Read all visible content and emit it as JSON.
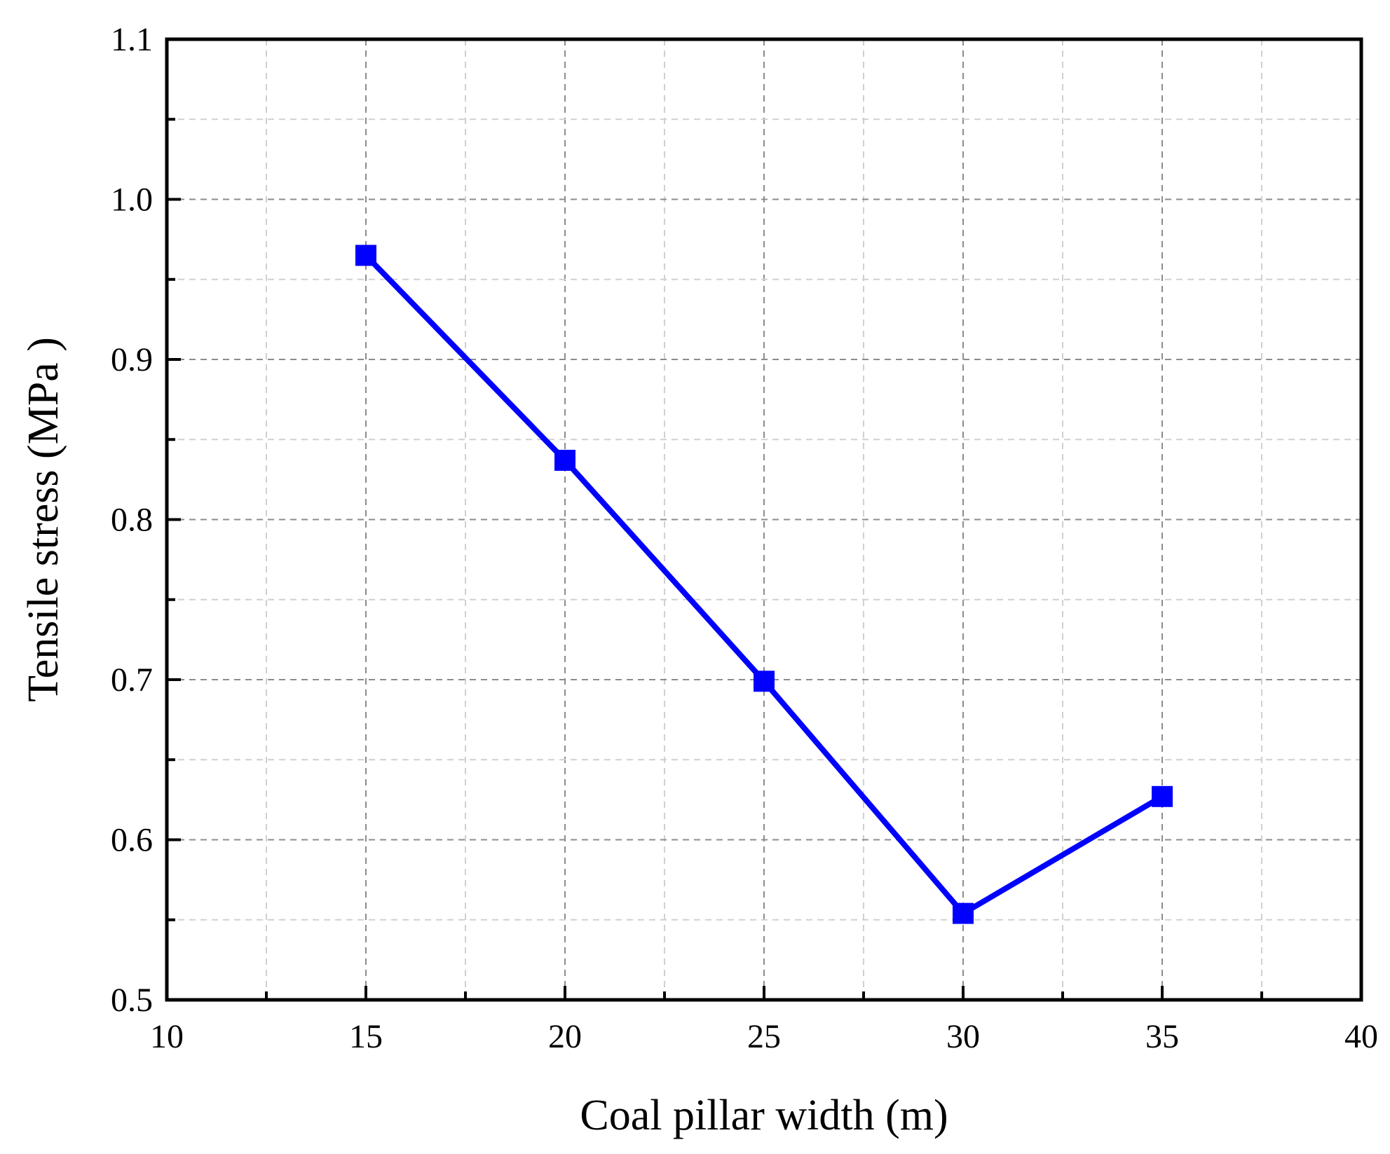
{
  "chart_data": {
    "type": "line",
    "title": "",
    "xlabel": "Coal pillar width (m)",
    "ylabel": "Tensile stress (MPa )",
    "xlim": [
      10,
      40
    ],
    "ylim": [
      0.5,
      1.1
    ],
    "x_ticks": [
      "10",
      "15",
      "20",
      "25",
      "30",
      "35",
      "40"
    ],
    "y_ticks": [
      "0.5",
      "0.6",
      "0.7",
      "0.8",
      "0.9",
      "1.0",
      "1.1"
    ],
    "grid": true,
    "legend": "none",
    "series": [
      {
        "color": "#0000ff",
        "marker": "square",
        "x": [
          15,
          20,
          25,
          30,
          35
        ],
        "y": [
          0.965,
          0.837,
          0.699,
          0.554,
          0.627
        ]
      }
    ]
  }
}
